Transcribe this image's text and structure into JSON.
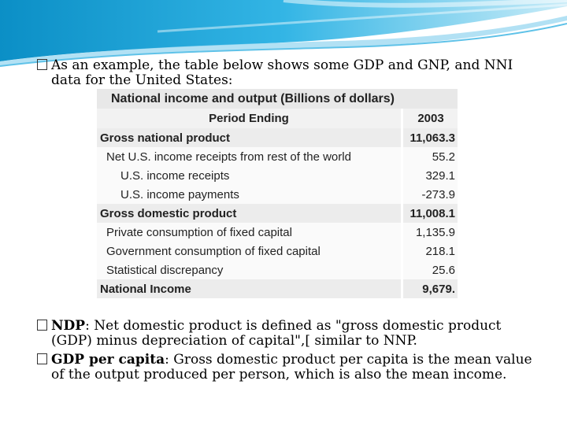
{
  "colors": {
    "accent": "#1ea3d6",
    "accent_light": "#7fd0ef",
    "table_header": "#e8e8e8"
  },
  "bullet1": {
    "line1": "As an example, the table below shows some GDP and GNP, and NNI",
    "line2": "data for the United States:"
  },
  "table": {
    "title": "National income and output (Billions of dollars)",
    "col_label": "Period Ending",
    "col_year": "2003",
    "rows": [
      {
        "label": "Gross national product",
        "value": "11,063.3"
      },
      {
        "label": "Net U.S. income receipts from rest of the world",
        "value": "55.2"
      },
      {
        "label": "U.S. income receipts",
        "value": "329.1"
      },
      {
        "label": "U.S. income payments",
        "value": "-273.9"
      },
      {
        "label": "Gross domestic product",
        "value": "11,008.1"
      },
      {
        "label": "Private consumption of fixed capital",
        "value": "1,135.9"
      },
      {
        "label": "Government consumption of fixed capital",
        "value": "218.1"
      },
      {
        "label": "Statistical discrepancy",
        "value": "25.6"
      },
      {
        "label": "National Income",
        "value": "9,679."
      }
    ]
  },
  "bullet2": {
    "term": "NDP",
    "line1": ": Net domestic product is defined as \"gross domestic product",
    "line2": "(GDP) minus depreciation of capital\",[ similar to NNP."
  },
  "bullet3": {
    "term": "GDP per capita",
    "line1": ": Gross domestic product per capita is the mean value",
    "line2": "of the output produced per person, which is also the mean income."
  }
}
